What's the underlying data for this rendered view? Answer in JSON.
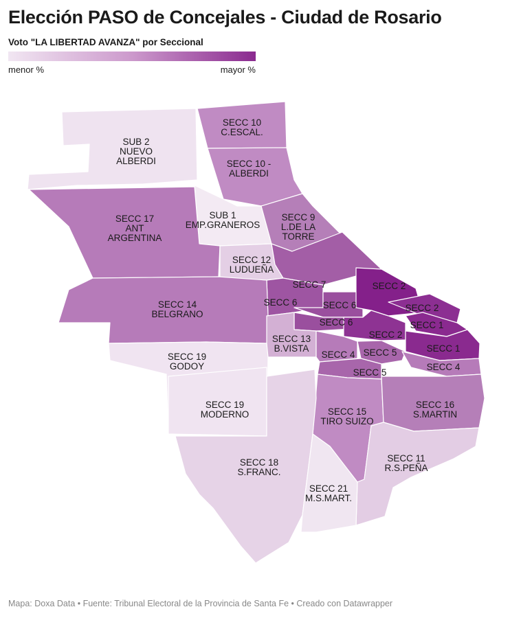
{
  "title": "Elección PASO de Concejales - Ciudad de Rosario",
  "subtitle": "Voto \"LA LIBERTAD AVANZA\" por Seccional",
  "legend": {
    "min_label": "menor %",
    "max_label": "mayor %",
    "scale_colors": [
      "#f1e6f2",
      "#cc99cc",
      "#8a2a8f"
    ]
  },
  "regions": [
    {
      "name_lines": [
        "SUB 2",
        "NUEVO",
        "ALBERDI"
      ],
      "color": "#efe3f0"
    },
    {
      "name_lines": [
        "SECC 10",
        "C.ESCAL."
      ],
      "color": "#c08bc3"
    },
    {
      "name_lines": [
        "SECC 10 -",
        "ALBERDI"
      ],
      "color": "#c08bc3"
    },
    {
      "name_lines": [
        "SUB 1",
        "EMP.GRANEROS"
      ],
      "color": "#f3eaf3"
    },
    {
      "name_lines": [
        "SECC 17",
        "ANT",
        "ARGENTINA"
      ],
      "color": "#b67bb9"
    },
    {
      "name_lines": [
        "SECC 9",
        "L.DE LA",
        "TORRE"
      ],
      "color": "#b57fb8"
    },
    {
      "name_lines": [
        "SECC 12",
        "LUDUEÑA"
      ],
      "color": "#e4cfe5"
    },
    {
      "name_lines": [
        "SECC 7"
      ],
      "color": "#a35ea6"
    },
    {
      "name_lines": [
        "SECC 6"
      ],
      "color": "#9e55a2"
    },
    {
      "name_lines": [
        "SECC 6"
      ],
      "color": "#9a4f9e"
    },
    {
      "name_lines": [
        "SECC 6"
      ],
      "color": "#9a4f9e"
    },
    {
      "name_lines": [
        "SECC 2"
      ],
      "color": "#84208a"
    },
    {
      "name_lines": [
        "SECC 2"
      ],
      "color": "#8c2f92"
    },
    {
      "name_lines": [
        "SECC 2"
      ],
      "color": "#8e3393"
    },
    {
      "name_lines": [
        "SECC 1"
      ],
      "color": "#8a2a8f"
    },
    {
      "name_lines": [
        "SECC 1"
      ],
      "color": "#8a2a8f"
    },
    {
      "name_lines": [
        "SECC 14",
        "BELGRANO"
      ],
      "color": "#b67bb9"
    },
    {
      "name_lines": [
        "SECC 13",
        "B.VISTA"
      ],
      "color": "#d3b0d4"
    },
    {
      "name_lines": [
        "SECC 4"
      ],
      "color": "#b67bb9"
    },
    {
      "name_lines": [
        "SECC 5"
      ],
      "color": "#a866ab"
    },
    {
      "name_lines": [
        "SECC 5"
      ],
      "color": "#a866ab"
    },
    {
      "name_lines": [
        "SECC 4"
      ],
      "color": "#b67bb9"
    },
    {
      "name_lines": [
        "SECC 19",
        "GODOY"
      ],
      "color": "#f0e4f1"
    },
    {
      "name_lines": [
        "SECC 19",
        "MODERNO"
      ],
      "color": "#f0e4f1"
    },
    {
      "name_lines": [
        "SECC 15",
        "TIRO SUIZO"
      ],
      "color": "#c08bc3"
    },
    {
      "name_lines": [
        "SECC 16",
        "S.MARTIN"
      ],
      "color": "#b57fb8"
    },
    {
      "name_lines": [
        "SECC 18",
        "S.FRANC."
      ],
      "color": "#e6d3e7"
    },
    {
      "name_lines": [
        "SECC 11",
        "R.S.PEÑA"
      ],
      "color": "#e3cde4"
    },
    {
      "name_lines": [
        "SECC 21",
        "M.S.MART."
      ],
      "color": "#f0e6f1"
    }
  ],
  "footer": "Mapa: Doxa Data • Fuente: Tribunal Electoral de la Provincia de Santa Fe • Creado con Datawrapper"
}
